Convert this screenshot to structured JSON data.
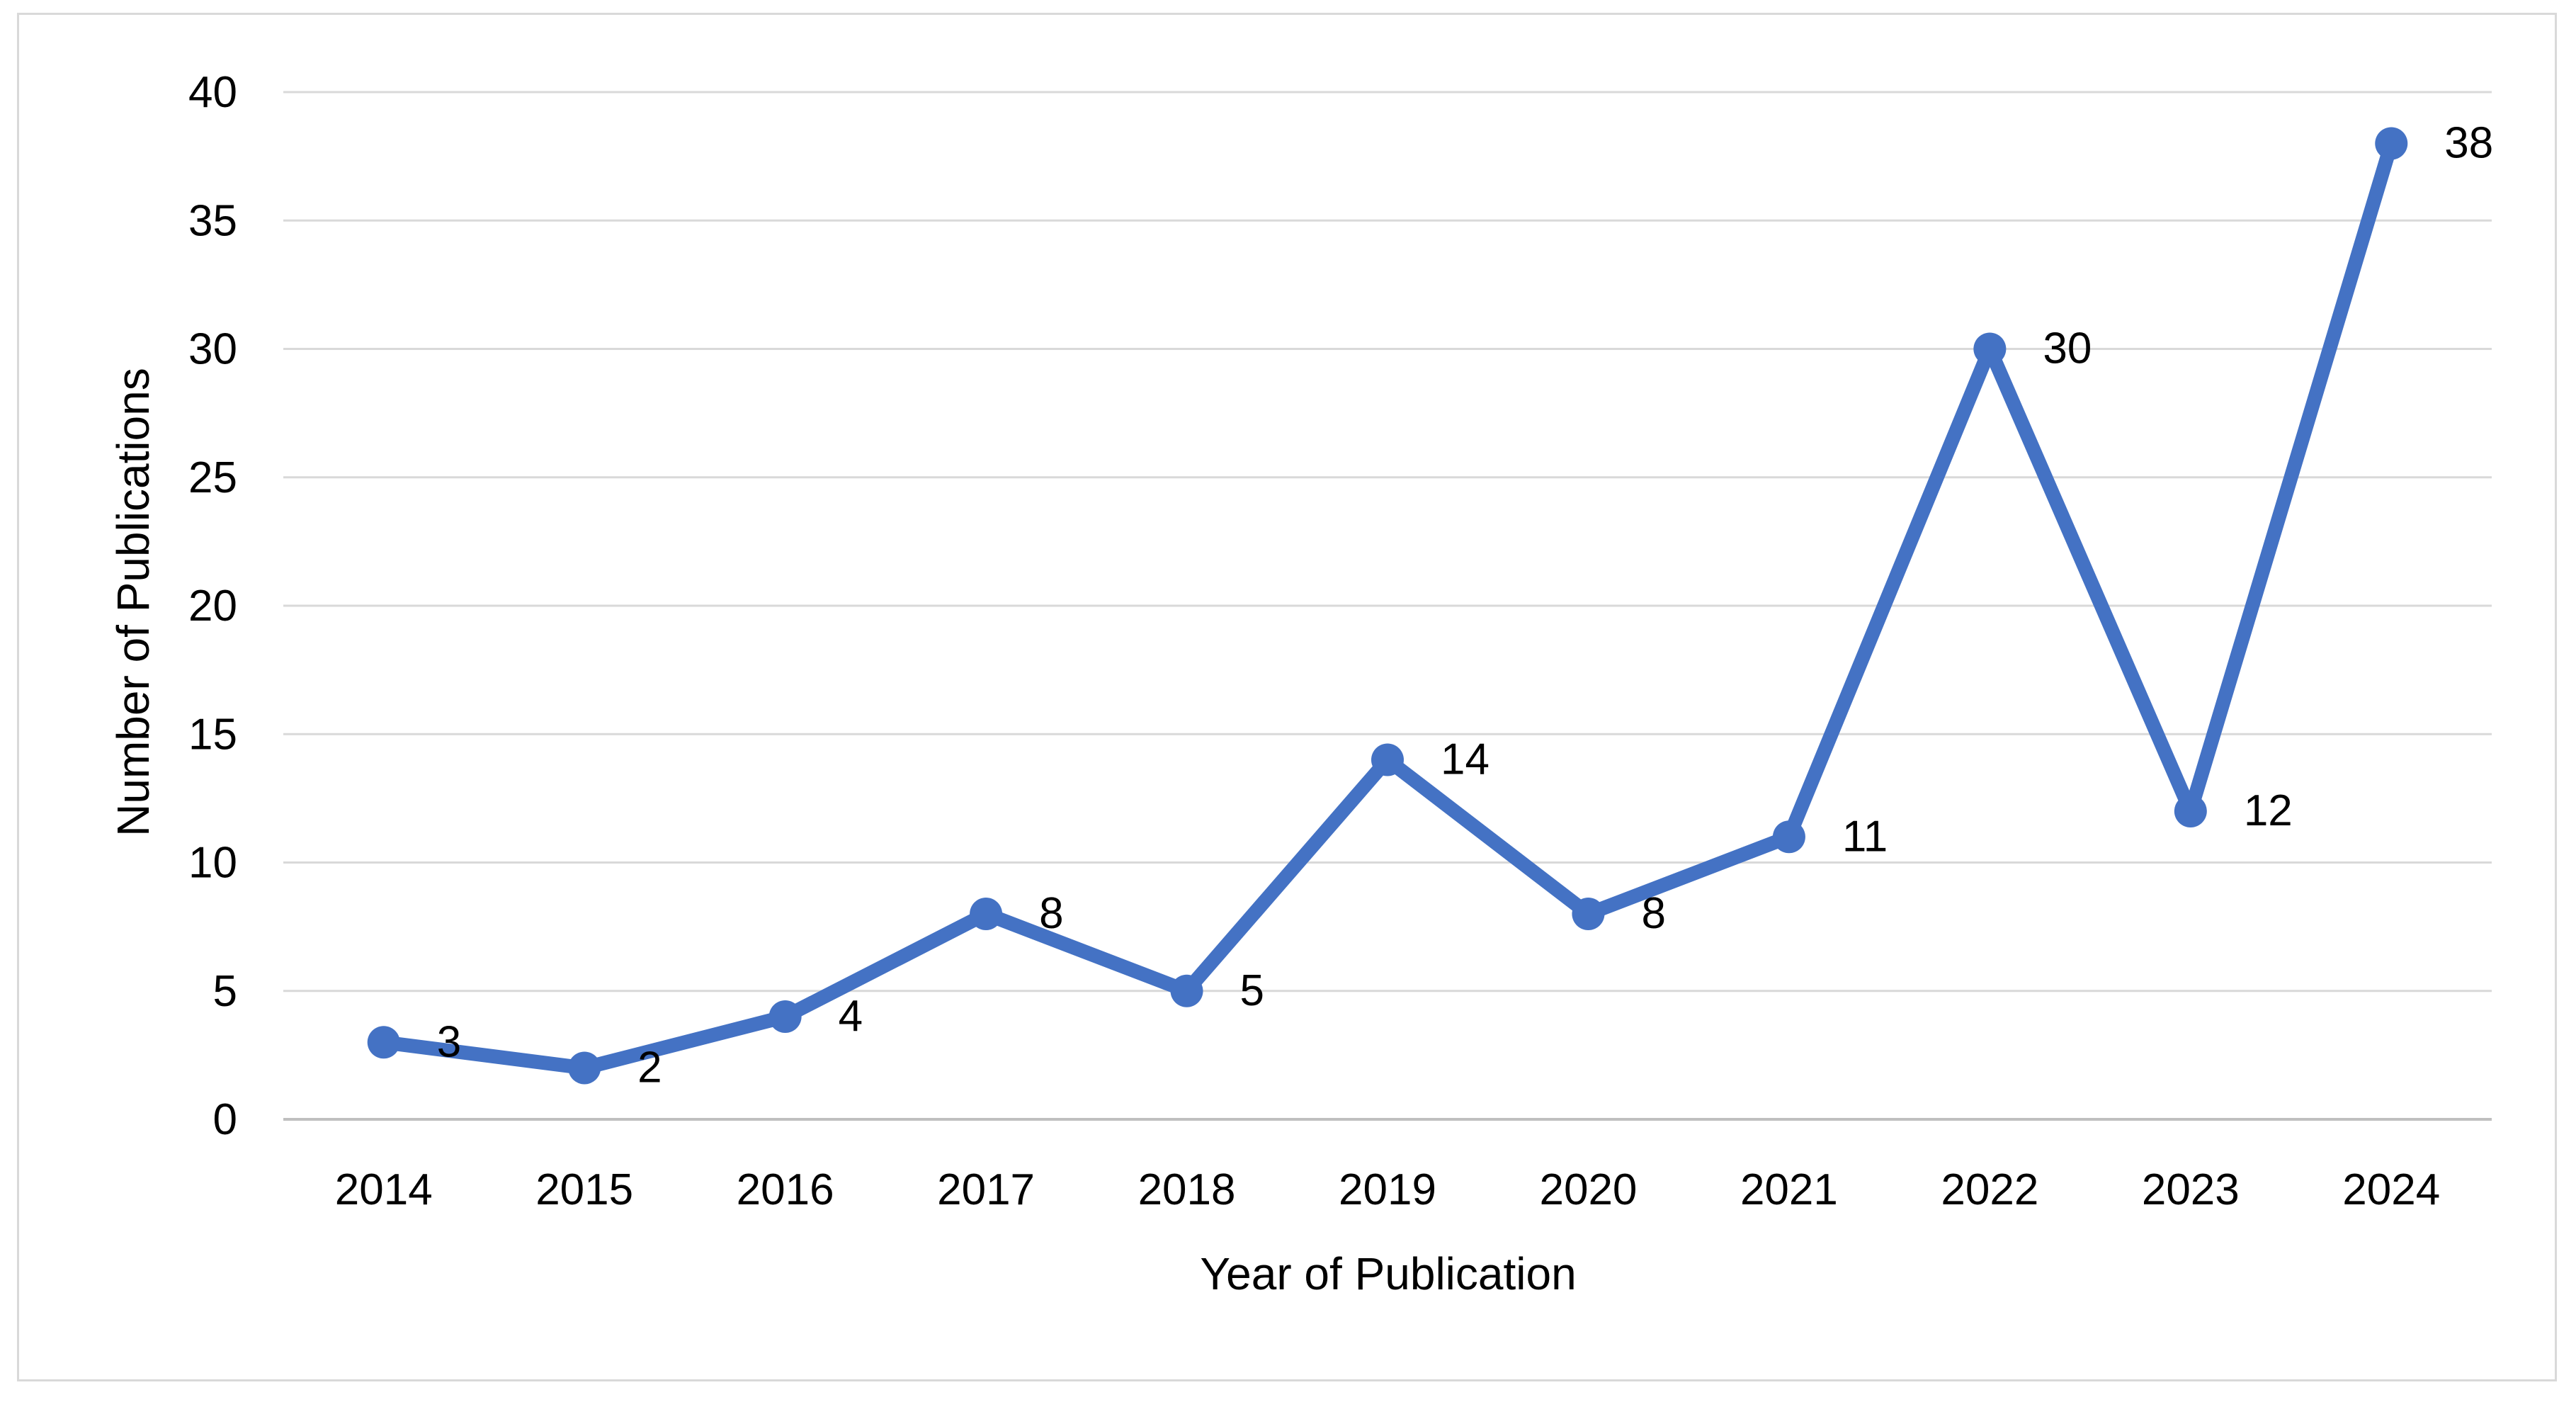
{
  "chart_data": {
    "type": "line",
    "title": "",
    "xlabel": "Year of Publication",
    "ylabel": "Number of Publications",
    "categories": [
      "2014",
      "2015",
      "2016",
      "2017",
      "2018",
      "2019",
      "2020",
      "2021",
      "2022",
      "2023",
      "2024"
    ],
    "series": [
      {
        "values": [
          3,
          2,
          4,
          8,
          5,
          14,
          8,
          11,
          30,
          12,
          38
        ]
      }
    ],
    "y_ticks": [
      "0",
      "5",
      "10",
      "15",
      "20",
      "25",
      "30",
      "35",
      "40"
    ],
    "ylim": [
      0,
      40
    ],
    "grid": true,
    "legend": "none",
    "data_labels": true,
    "colors": {
      "line": "#4472C4",
      "grid": "#d9d9d9",
      "frame": "#d9d9d9",
      "axis": "#bfbfbf"
    }
  }
}
